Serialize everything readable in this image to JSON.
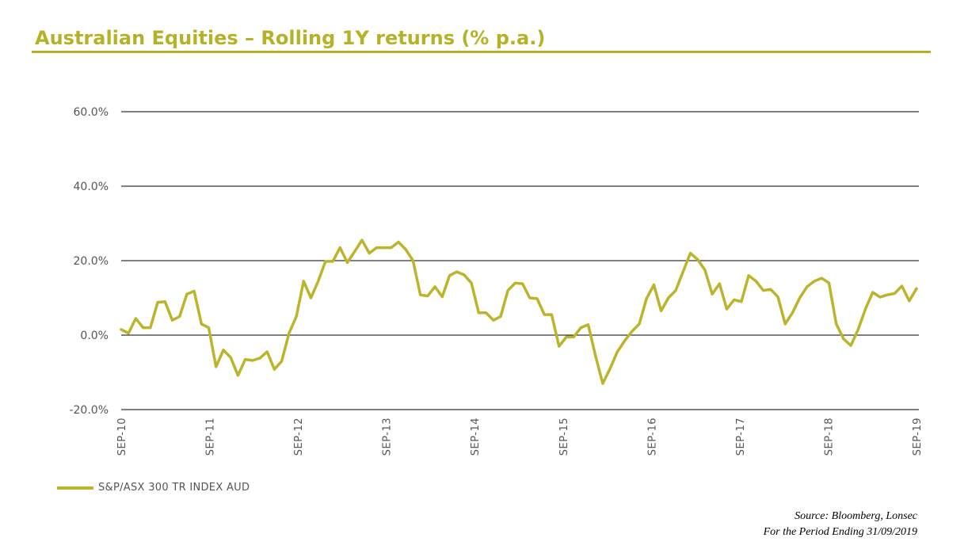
{
  "title": "Australian Equities – Rolling 1Y returns (% p.a.)",
  "colors": {
    "accent": "#b6b227",
    "series": "#bcb52b",
    "grid": "#000000",
    "axis_text": "#555555"
  },
  "legend": {
    "label": "S&P/ASX 300 TR INDEX AUD"
  },
  "source": {
    "line1": "Source: Bloomberg, Lonsec",
    "line2": "For the Period Ending 31/09/2019"
  },
  "chart_data": {
    "type": "line",
    "title": "Australian Equities – Rolling 1Y returns (% p.a.)",
    "xlabel": "",
    "ylabel": "",
    "ylim": [
      -20,
      60
    ],
    "yticks": [
      -20,
      0,
      20,
      40,
      60
    ],
    "ytick_labels": [
      "-20.0%",
      "0.0%",
      "20.0%",
      "40.0%",
      "60.0%"
    ],
    "xtick_labels": [
      "SEP-10",
      "SEP-11",
      "SEP-12",
      "SEP-13",
      "SEP-14",
      "SEP-15",
      "SEP-16",
      "SEP-17",
      "SEP-18",
      "SEP-19"
    ],
    "x_start_label": "SEP-10",
    "x_end_label": "SEP-19",
    "legend_position": "bottom-left",
    "series": [
      {
        "name": "S&P/ASX 300 TR INDEX AUD",
        "values": [
          1.5,
          0.5,
          4.5,
          2.0,
          2.0,
          8.8,
          9.0,
          4.0,
          5.0,
          11.0,
          11.8,
          3.0,
          2.0,
          -8.5,
          -4.0,
          -6.0,
          -10.8,
          -6.5,
          -6.8,
          -6.2,
          -4.5,
          -9.2,
          -7.0,
          0.5,
          5.0,
          14.5,
          10.0,
          14.5,
          19.8,
          19.8,
          23.5,
          19.5,
          22.5,
          25.5,
          22.0,
          23.5,
          23.5,
          23.5,
          25.0,
          23.0,
          20.0,
          10.8,
          10.5,
          13.0,
          10.3,
          16.0,
          17.0,
          16.2,
          14.0,
          6.0,
          6.0,
          4.0,
          5.0,
          12.0,
          14.0,
          13.8,
          10.0,
          9.8,
          5.5,
          5.5,
          -3.0,
          -0.5,
          -0.5,
          2.0,
          2.8,
          -5.5,
          -13.0,
          -9.0,
          -4.5,
          -1.5,
          1.0,
          3.0,
          9.8,
          13.5,
          6.5,
          10.0,
          12.0,
          17.0,
          22.0,
          20.3,
          17.5,
          11.0,
          13.8,
          7.0,
          9.5,
          9.0,
          16.0,
          14.5,
          12.0,
          12.3,
          10.3,
          3.0,
          6.0,
          10.0,
          13.0,
          14.5,
          15.3,
          14.0,
          3.0,
          -1.0,
          -2.8,
          1.5,
          7.0,
          11.5,
          10.2,
          10.8,
          11.2,
          13.2,
          9.2,
          12.5
        ]
      }
    ]
  }
}
